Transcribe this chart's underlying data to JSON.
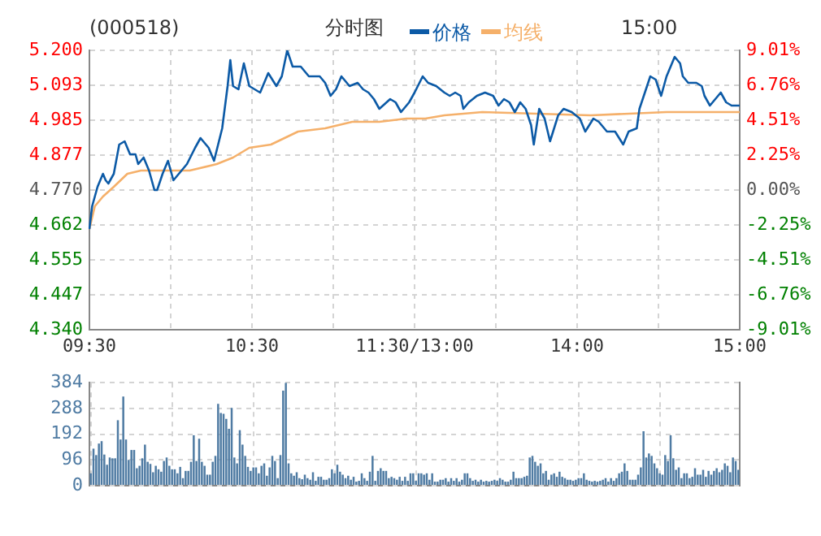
{
  "chart_data": [
    {
      "type": "line",
      "title": "(000518)",
      "subtitle": "分时图",
      "annotations": [
        "15:00"
      ],
      "legend": "top",
      "grid": true,
      "marker": "none",
      "categories": [
        "09:30",
        null,
        null,
        null,
        null,
        null,
        null,
        null,
        null,
        null,
        null,
        null,
        null,
        null,
        null,
        null,
        null,
        null,
        null,
        null,
        null,
        null,
        null,
        null,
        null,
        null,
        null,
        null,
        null,
        null,
        null,
        null,
        null,
        null,
        null,
        null,
        null,
        null,
        null,
        null,
        null,
        null,
        null,
        null,
        null,
        null,
        null,
        null,
        null,
        null,
        null,
        null,
        null,
        null,
        null,
        null,
        null,
        null,
        null,
        null,
        "10:30",
        null,
        null,
        null,
        null,
        null,
        null,
        null,
        null,
        null,
        null,
        null,
        null,
        null,
        null,
        null,
        null,
        null,
        null,
        null,
        null,
        null,
        null,
        null,
        null,
        null,
        null,
        null,
        null,
        null,
        null,
        null,
        null,
        null,
        null,
        null,
        null,
        null,
        null,
        null,
        null,
        null,
        null,
        null,
        null,
        null,
        null,
        null,
        null,
        null,
        null,
        null,
        null,
        null,
        null,
        null,
        null,
        null,
        null,
        null,
        "11:30/13:00",
        null,
        null,
        null,
        null,
        null,
        null,
        null,
        null,
        null,
        null,
        null,
        null,
        null,
        null,
        null,
        null,
        null,
        null,
        null,
        null,
        null,
        null,
        null,
        null,
        null,
        null,
        null,
        null,
        null,
        null,
        null,
        null,
        null,
        null,
        null,
        null,
        null,
        null,
        null,
        null,
        null,
        null,
        null,
        null,
        null,
        null,
        null,
        null,
        null,
        null,
        null,
        null,
        null,
        null,
        null,
        null,
        null,
        null,
        null,
        "14:00",
        null,
        null,
        null,
        null,
        null,
        null,
        null,
        null,
        null,
        null,
        null,
        null,
        null,
        null,
        null,
        null,
        null,
        null,
        null,
        null,
        null,
        null,
        null,
        null,
        null,
        null,
        null,
        null,
        null,
        null,
        null,
        null,
        null,
        null,
        null,
        null,
        null,
        null,
        null,
        null,
        null,
        null,
        null,
        null,
        null,
        null,
        null,
        null,
        null,
        null,
        null,
        null,
        null,
        null,
        null,
        null,
        null,
        null,
        null,
        "15:00"
      ],
      "ylim": [
        4.34,
        5.2
      ],
      "yticks": [
        {
          "value": 4.34,
          "label": "4.340"
        },
        {
          "value": 4.447,
          "label": "4.447"
        },
        {
          "value": 4.555,
          "label": "4.555"
        },
        {
          "value": 4.662,
          "label": "4.662"
        },
        {
          "value": 4.77,
          "label": "4.770"
        },
        {
          "value": 4.877,
          "label": "4.877"
        },
        {
          "value": 4.985,
          "label": "4.985"
        },
        {
          "value": 5.093,
          "label": "5.093"
        },
        {
          "value": 5.2,
          "label": "5.200"
        }
      ],
      "y2lim": [
        -9.01,
        9.01
      ],
      "y2ticks": [
        {
          "value": -9.01,
          "label": "-9.01%"
        },
        {
          "value": -6.76,
          "label": "-6.76%"
        },
        {
          "value": -4.51,
          "label": "-4.51%"
        },
        {
          "value": -2.25,
          "label": "-2.25%"
        },
        {
          "value": 0,
          "label": "0.00%"
        },
        {
          "value": 2.25,
          "label": "2.25%"
        },
        {
          "value": 4.51,
          "label": "4.51%"
        },
        {
          "value": 6.76,
          "label": "6.76%"
        },
        {
          "value": 9.01,
          "label": "9.01%"
        }
      ],
      "series": [
        {
          "name": "价格",
          "color": "#0c5aa6",
          "values": [
            4.65,
            4.72,
            null,
            4.78,
            null,
            4.82,
            4.8,
            4.79,
            null,
            4.82,
            null,
            4.91,
            null,
            4.92,
            null,
            4.88,
            null,
            4.88,
            4.85,
            null,
            4.87,
            null,
            4.83,
            null,
            4.77,
            4.77,
            null,
            4.82,
            null,
            4.86,
            4.83,
            4.8,
            null,
            4.82,
            null,
            null,
            4.85,
            null,
            null,
            4.9,
            null,
            4.93,
            null,
            null,
            4.9,
            null,
            4.86,
            null,
            null,
            4.96,
            null,
            5.09,
            5.17,
            5.09,
            null,
            5.08,
            null,
            5.16,
            null,
            5.09,
            null,
            5.08,
            null,
            5.07,
            null,
            null,
            5.13,
            null,
            null,
            5.09,
            null,
            5.12,
            null,
            5.2,
            null,
            5.15,
            null,
            null,
            5.15,
            null,
            null,
            5.12,
            null,
            5.12,
            null,
            5.12,
            null,
            5.1,
            null,
            5.06,
            null,
            5.08,
            null,
            5.12,
            null,
            null,
            5.09,
            null,
            null,
            5.1,
            null,
            5.08,
            null,
            5.07,
            null,
            5.05,
            null,
            5.02,
            null,
            null,
            null,
            5.05,
            null,
            5.04,
            null,
            5.01,
            null,
            null,
            5.04,
            null,
            5.07,
            null,
            null,
            5.12,
            null,
            5.1,
            null,
            null,
            5.09,
            null,
            null,
            5.07,
            null,
            5.06,
            null,
            5.07,
            null,
            5.06,
            5.02,
            null,
            5.04,
            null,
            null,
            5.06,
            null,
            null,
            5.07,
            null,
            null,
            5.06,
            null,
            5.03,
            null,
            5.05,
            null,
            5.04,
            null,
            5.01,
            null,
            5.04,
            null,
            5.02,
            null,
            4.97,
            4.91,
            null,
            5.02,
            null,
            4.99,
            null,
            4.92,
            null,
            null,
            5.0,
            null,
            5.02,
            null,
            null,
            5.01,
            null,
            null,
            4.99,
            null,
            4.95,
            null,
            null,
            4.99,
            null,
            4.98,
            null,
            null,
            4.95,
            null,
            null,
            4.95,
            null,
            null,
            4.91,
            null,
            4.95,
            null,
            null,
            4.96,
            5.02,
            null,
            5.07,
            null,
            5.12,
            null,
            5.11,
            null,
            5.06,
            null,
            5.12,
            null,
            null,
            5.18,
            null,
            5.16,
            5.12,
            null,
            5.1,
            null,
            null,
            5.1,
            null,
            5.09,
            5.06,
            null,
            5.03,
            null,
            5.05,
            null,
            5.07,
            null,
            5.04,
            null,
            5.03,
            null,
            null,
            5.03
          ]
        },
        {
          "name": "均线",
          "color": "#f5b06a",
          "values": [
            4.65,
            null,
            4.72,
            null,
            null,
            4.75,
            null,
            null,
            null,
            4.78,
            null,
            null,
            null,
            null,
            4.82,
            null,
            null,
            null,
            null,
            4.83,
            null,
            null,
            null,
            null,
            null,
            null,
            null,
            4.83,
            null,
            null,
            null,
            null,
            null,
            null,
            null,
            null,
            null,
            4.83,
            null,
            null,
            null,
            null,
            null,
            null,
            null,
            null,
            null,
            4.85,
            null,
            null,
            null,
            null,
            null,
            4.87,
            null,
            null,
            null,
            null,
            null,
            4.9,
            null,
            null,
            null,
            null,
            null,
            null,
            null,
            4.91,
            null,
            null,
            null,
            null,
            null,
            null,
            null,
            null,
            null,
            4.95,
            null,
            null,
            null,
            null,
            null,
            null,
            null,
            null,
            null,
            4.96,
            null,
            null,
            null,
            null,
            null,
            null,
            null,
            null,
            null,
            4.98,
            null,
            null,
            null,
            null,
            null,
            null,
            null,
            null,
            null,
            4.98,
            null,
            null,
            null,
            null,
            null,
            null,
            null,
            null,
            null,
            4.99,
            null,
            null,
            null,
            null,
            null,
            null,
            4.99,
            null,
            null,
            null,
            null,
            null,
            null,
            5.0,
            null,
            null,
            null,
            null,
            null,
            null,
            null,
            null,
            null,
            null,
            null,
            null,
            null,
            5.01,
            null,
            null,
            null,
            null,
            null,
            null,
            null,
            null,
            null,
            null,
            null,
            null,
            null,
            null,
            null,
            null,
            null,
            null,
            null,
            null,
            null,
            null,
            null,
            null,
            null,
            null,
            null,
            null,
            null,
            null,
            null,
            null,
            null,
            null,
            null,
            null,
            null,
            null,
            null,
            5.0,
            null,
            null,
            null,
            null,
            null,
            null,
            null,
            null,
            null,
            null,
            null,
            null,
            null,
            null,
            null,
            null,
            null,
            null,
            null,
            null,
            null,
            null,
            null,
            null,
            null,
            null,
            null,
            5.01,
            null,
            null,
            null,
            null,
            null,
            null,
            null,
            null,
            null,
            5.01,
            null,
            null,
            null,
            null,
            null,
            null,
            null,
            null,
            null,
            null,
            null,
            null,
            null,
            null,
            null,
            null,
            5.01
          ]
        }
      ]
    },
    {
      "type": "bar",
      "grid": true,
      "tick_labels": "y",
      "categories": [
        null,
        null,
        null,
        null,
        null,
        null,
        null,
        null,
        null,
        null,
        null,
        null,
        null,
        null,
        null,
        null,
        null,
        null,
        null,
        null,
        null,
        null,
        null,
        null,
        null,
        null,
        null,
        null,
        null,
        null,
        null,
        null,
        null,
        null,
        null,
        null,
        null,
        null,
        null,
        null,
        null,
        null,
        null,
        null,
        null,
        null,
        null,
        null,
        null,
        null,
        null,
        null,
        null,
        null,
        null,
        null,
        null,
        null,
        null,
        null,
        null,
        null,
        null,
        null,
        null,
        null,
        null,
        null,
        null,
        null,
        null,
        null,
        null,
        null,
        null,
        null,
        null,
        null,
        null,
        null,
        null,
        null,
        null,
        null,
        null,
        null,
        null,
        null,
        null,
        null,
        null,
        null,
        null,
        null,
        null,
        null,
        null,
        null,
        null,
        null,
        null,
        null,
        null,
        null,
        null,
        null,
        null,
        null,
        null,
        null,
        null,
        null,
        null,
        null,
        null,
        null,
        null,
        null,
        null,
        null,
        null,
        null,
        null,
        null,
        null,
        null,
        null,
        null,
        null,
        null,
        null,
        null,
        null,
        null,
        null,
        null,
        null,
        null,
        null,
        null,
        null,
        null,
        null,
        null,
        null,
        null,
        null,
        null,
        null,
        null,
        null,
        null,
        null,
        null,
        null,
        null,
        null,
        null,
        null,
        null,
        null,
        null,
        null,
        null,
        null,
        null,
        null,
        null,
        null,
        null,
        null,
        null,
        null,
        null,
        null,
        null,
        null,
        null,
        null,
        null,
        null,
        null,
        null,
        null,
        null,
        null,
        null,
        null,
        null,
        null,
        null,
        null,
        null,
        null,
        null,
        null,
        null,
        null,
        null,
        null,
        null,
        null,
        null,
        null,
        null,
        null,
        null,
        null,
        null,
        null,
        null,
        null,
        null,
        null,
        null,
        null,
        null,
        null,
        null,
        null,
        null,
        null,
        null,
        null,
        null,
        null,
        null,
        null,
        null,
        null,
        null,
        null,
        null,
        null,
        null,
        null,
        null,
        null,
        null,
        null
      ],
      "ylim": [
        0,
        384
      ],
      "yticks": [
        0,
        96,
        192,
        288,
        384
      ],
      "series": [
        {
          "color": "#4f7ba3",
          "values": [
            46,
            138,
            114,
            157,
            166,
            116,
            78,
            105,
            102,
            102,
            244,
            172,
            332,
            172,
            96,
            133,
            133,
            65,
            74,
            102,
            153,
            89,
            81,
            50,
            74,
            61,
            52,
            92,
            105,
            74,
            61,
            61,
            46,
            70,
            28,
            55,
            55,
            89,
            188,
            92,
            175,
            89,
            74,
            41,
            41,
            89,
            111,
            305,
            271,
            268,
            249,
            212,
            290,
            105,
            83,
            207,
            153,
            111,
            70,
            55,
            68,
            68,
            46,
            74,
            83,
            37,
            68,
            111,
            92,
            28,
            114,
            354,
            384,
            83,
            46,
            37,
            50,
            28,
            24,
            41,
            28,
            22,
            50,
            18,
            33,
            33,
            22,
            22,
            28,
            61,
            46,
            78,
            52,
            41,
            28,
            37,
            22,
            33,
            15,
            18,
            46,
            28,
            18,
            52,
            111,
            18,
            55,
            65,
            55,
            55,
            28,
            33,
            28,
            22,
            33,
            18,
            33,
            18,
            46,
            46,
            18,
            46,
            46,
            41,
            46,
            22,
            46,
            15,
            15,
            22,
            22,
            28,
            15,
            28,
            18,
            28,
            15,
            22,
            46,
            46,
            28,
            18,
            22,
            15,
            22,
            15,
            18,
            15,
            18,
            22,
            18,
            28,
            22,
            15,
            15,
            22,
            52,
            28,
            28,
            28,
            33,
            37,
            105,
            111,
            89,
            74,
            83,
            46,
            55,
            22,
            41,
            46,
            33,
            52,
            33,
            28,
            22,
            22,
            18,
            22,
            28,
            28,
            46,
            22,
            18,
            15,
            18,
            15,
            18,
            22,
            28,
            15,
            28,
            18,
            28,
            46,
            52,
            83,
            55,
            22,
            22,
            22,
            41,
            68,
            203,
            105,
            120,
            111,
            83,
            65,
            46,
            41,
            114,
            92,
            188,
            102,
            59,
            68,
            28,
            46,
            46,
            28,
            33,
            65,
            41,
            41,
            59,
            33,
            55,
            41,
            55,
            65,
            50,
            59,
            83,
            74,
            50,
            105,
            92,
            59
          ]
        }
      ]
    }
  ]
}
